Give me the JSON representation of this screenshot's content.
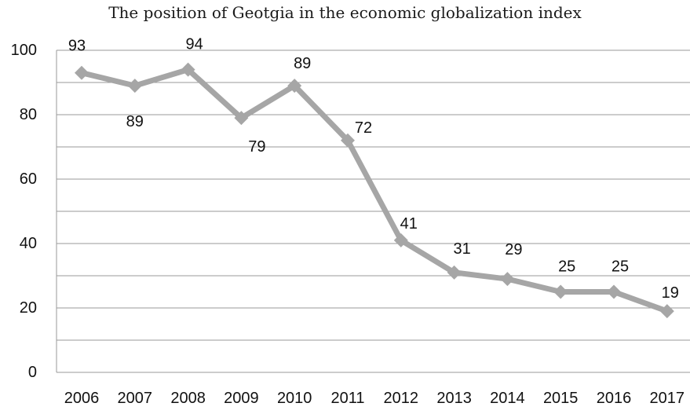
{
  "chart_data": {
    "type": "line",
    "title": "The position of Geotgia in the economic globalization index",
    "xlabel": "",
    "ylabel": "",
    "categories": [
      "2006",
      "2007",
      "2008",
      "2009",
      "2010",
      "2011",
      "2012",
      "2013",
      "2014",
      "2015",
      "2016",
      "2017"
    ],
    "series": [
      {
        "values": [
          93,
          89,
          94,
          79,
          89,
          72,
          41,
          31,
          29,
          25,
          25,
          19
        ],
        "color": "#a6a6a6",
        "marker": "diamond"
      }
    ],
    "ylim": [
      0,
      100
    ],
    "yticks": [
      "0",
      "20",
      "40",
      "60",
      "80",
      "100"
    ],
    "grid": true,
    "data_labels": [
      "93",
      "89",
      "94",
      "79",
      "89",
      "72",
      "41",
      "31",
      "29",
      "25",
      "25",
      "19"
    ],
    "legend": "none"
  }
}
